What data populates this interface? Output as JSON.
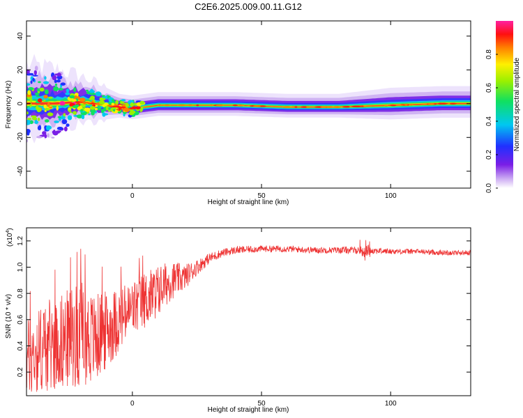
{
  "title": "C2E6.2025.009.00.11.G12",
  "chart_data": [
    {
      "type": "heatmap",
      "xlabel": "Height of straight line (km)",
      "ylabel": "Frequency (Hz)",
      "xlim": [
        -41,
        131
      ],
      "ylim": [
        -50,
        49
      ],
      "xticks": [
        0,
        50,
        100
      ],
      "yticks": [
        -40,
        -20,
        0,
        20,
        40
      ],
      "colorbar": {
        "label": "Normalized spectral amplitude",
        "range": [
          0,
          1
        ],
        "ticks": [
          "0.0",
          "0.2",
          "0.4",
          "0.6",
          "0.8"
        ],
        "colormap": "rainbow (white-purple-blue-cyan-green-yellow-red-magenta)"
      },
      "ridge": {
        "description": "central spectral line frequency (Hz) vs height (km)",
        "x": [
          -41,
          -30,
          -20,
          -10,
          -5,
          0,
          5,
          10,
          20,
          40,
          60,
          80,
          100,
          120,
          131
        ],
        "y": [
          0,
          0,
          1,
          -1,
          -2,
          -3,
          -2,
          -1,
          -1,
          -1,
          -2,
          -2,
          -1,
          0,
          0
        ],
        "spread_hz": [
          9,
          8,
          6,
          4,
          3,
          3,
          3,
          3,
          3,
          3,
          3,
          3,
          4,
          4,
          4
        ]
      }
    },
    {
      "type": "line",
      "xlabel": "Height of straight line (km)",
      "ylabel": "SNR (10 * v/v)",
      "y_multiplier": "(x10",
      "y_multiplier_exp": "4",
      "y_multiplier_close": ")",
      "xlim": [
        -41,
        131
      ],
      "ylim": [
        0.02,
        1.3
      ],
      "xticks": [
        0,
        50,
        100
      ],
      "yticks": [
        "0.2",
        "0.4",
        "0.6",
        "0.8",
        "1.0",
        "1.2"
      ],
      "color": "#ee3333",
      "envelope": {
        "x": [
          -41,
          -35,
          -30,
          -25,
          -20,
          -15,
          -10,
          -5,
          0,
          5,
          10,
          15,
          20,
          25,
          30,
          35,
          40,
          50,
          60,
          70,
          80,
          90,
          100,
          110,
          120,
          131
        ],
        "mean": [
          0.3,
          0.38,
          0.42,
          0.45,
          0.5,
          0.45,
          0.52,
          0.6,
          0.68,
          0.75,
          0.82,
          0.9,
          0.92,
          1.0,
          1.07,
          1.11,
          1.13,
          1.14,
          1.14,
          1.13,
          1.13,
          1.13,
          1.12,
          1.12,
          1.11,
          1.11
        ],
        "noise": [
          0.3,
          0.35,
          0.35,
          0.38,
          0.4,
          0.35,
          0.3,
          0.25,
          0.22,
          0.22,
          0.2,
          0.15,
          0.1,
          0.06,
          0.04,
          0.03,
          0.03,
          0.025,
          0.025,
          0.025,
          0.025,
          0.03,
          0.02,
          0.02,
          0.02,
          0.02
        ]
      }
    }
  ]
}
